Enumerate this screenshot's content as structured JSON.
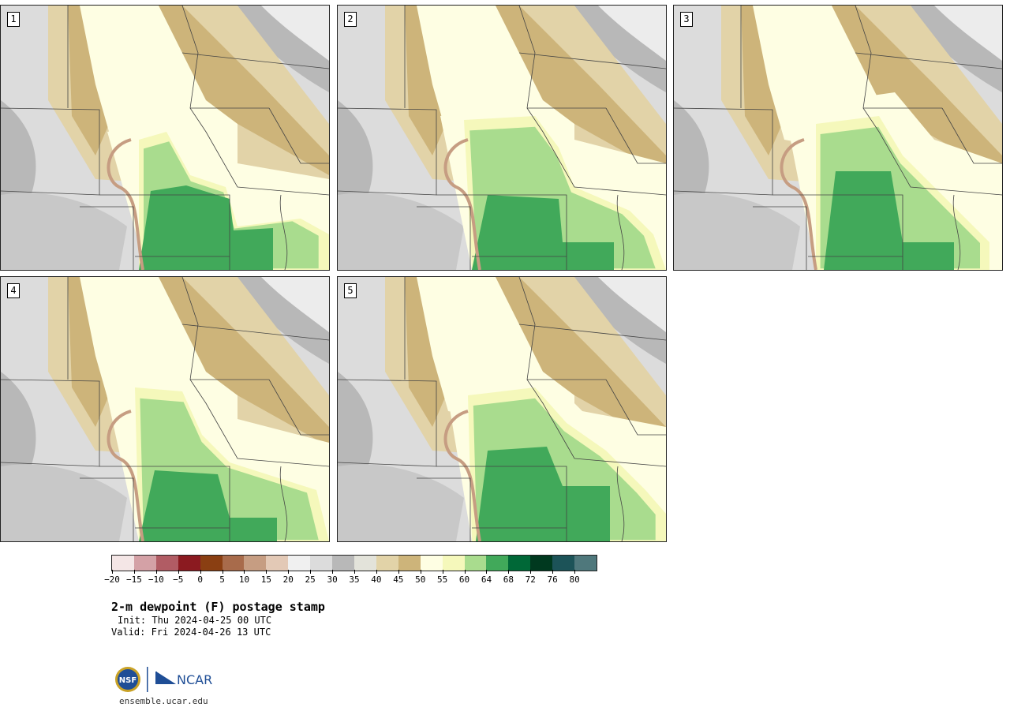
{
  "panels": [
    {
      "label": "1"
    },
    {
      "label": "2"
    },
    {
      "label": "3"
    },
    {
      "label": "4"
    },
    {
      "label": "5"
    }
  ],
  "colorbar": {
    "colors": [
      "#f4e6e6",
      "#d4a1a6",
      "#b15c64",
      "#8b1a20",
      "#8a3f12",
      "#a86b4b",
      "#c69d82",
      "#e3c9b6",
      "#f0f0f0",
      "#dcdcdc",
      "#b8b8b8",
      "#e3e3da",
      "#e2d3a8",
      "#cdb47a",
      "#fefee3",
      "#f5f8bb",
      "#a9dc8e",
      "#41a95a",
      "#006837",
      "#00391f",
      "#1c5358",
      "#4f787c"
    ],
    "ticks": [
      "−20",
      "−15",
      "−10",
      "−5",
      "0",
      "5",
      "10",
      "15",
      "20",
      "25",
      "30",
      "35",
      "40",
      "45",
      "50",
      "55",
      "60",
      "64",
      "68",
      "72",
      "76",
      "80"
    ]
  },
  "title": "2-m dewpoint (F) postage stamp",
  "init": "Init: Thu 2024-04-25 00 UTC",
  "valid": "Valid: Fri 2024-04-26 13 UTC",
  "logo": {
    "nsf": "NSF",
    "ncar": "NCAR"
  },
  "site": "ensemble.ucar.edu"
}
